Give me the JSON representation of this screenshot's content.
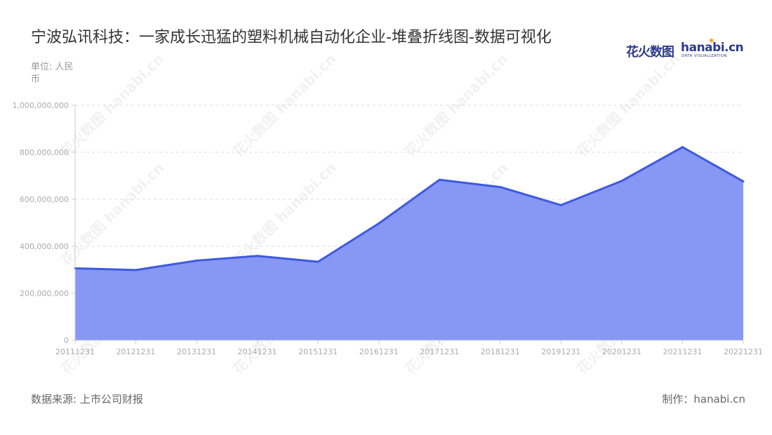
{
  "title": "宁波弘讯科技：一家成长迅猛的塑料机械自动化企业-堆叠折线图-数据可视化",
  "unit_label": "单位: 人民币",
  "source_label": "数据来源: 上市公司财报",
  "maker_label": "制作：hanabi.cn",
  "logo": {
    "cn_text": "花火数图",
    "en_text": "hanabi.cn",
    "sub_text": "DATA VISUALIZATION"
  },
  "watermark_text": "花火数图 hanabi.cn",
  "colors": {
    "line": "#3d5ae0",
    "area": "#8797f4",
    "grid": "#dddddd",
    "axis": "#cccccc",
    "tick_text": "#aaaaaa"
  },
  "chart_data": {
    "type": "area",
    "categories": [
      "20111231",
      "20121231",
      "20131231",
      "20141231",
      "20151231",
      "20161231",
      "20171231",
      "20181231",
      "20191231",
      "20201231",
      "20211231",
      "20221231"
    ],
    "series": [
      {
        "values": [
          306000000,
          299000000,
          339000000,
          359000000,
          334000000,
          497000000,
          683000000,
          652000000,
          575000000,
          678000000,
          822000000,
          676000000
        ]
      }
    ],
    "ylim": [
      0,
      1000000000
    ],
    "yticks": [
      0,
      200000000,
      400000000,
      600000000,
      800000000,
      1000000000
    ],
    "ytick_labels": [
      "0",
      "200,000,000",
      "400,000,000",
      "600,000,000",
      "800,000,000",
      "1,000,000,000"
    ],
    "grid": true,
    "legend": "none"
  }
}
